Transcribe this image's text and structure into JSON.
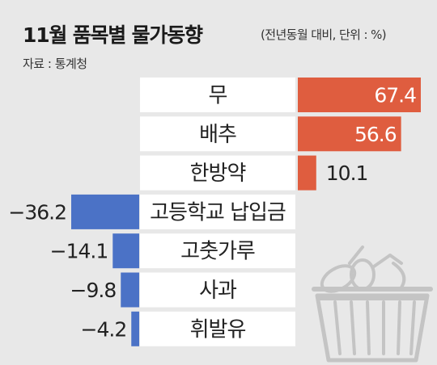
{
  "header": {
    "title": "11월 품목별 물가동향",
    "subtitle": "(전년동월 대비, 단위 : %)",
    "source": "자료 : 통계청"
  },
  "chart_data": {
    "type": "bar",
    "orientation": "horizontal",
    "title": "11월 품목별 물가동향",
    "subtitle": "(전년동월 대비, 단위 : %)",
    "unit": "%",
    "source": "자료 : 통계청",
    "categories": [
      "무",
      "배추",
      "한방약",
      "고등학교 납입금",
      "고춧가루",
      "사과",
      "휘발유"
    ],
    "values": [
      67.4,
      56.6,
      10.1,
      -36.2,
      -14.1,
      -9.8,
      -4.2
    ],
    "value_labels": [
      "67.4",
      "56.6",
      "10.1",
      "−36.2",
      "−14.1",
      "−9.8",
      "−4.2"
    ],
    "xlim": [
      -36.2,
      67.4
    ],
    "grid": false,
    "legend": "none"
  },
  "colors": {
    "positive": "#df5d3f",
    "negative": "#4b72c6",
    "label_box": "#ffffff",
    "background": "#e8e8e8",
    "text": "#222222",
    "positive_label_text": "#ffffff",
    "basket_icon": "#c4c4c4"
  },
  "icons": {
    "decoration": "shopping-basket-icon"
  }
}
